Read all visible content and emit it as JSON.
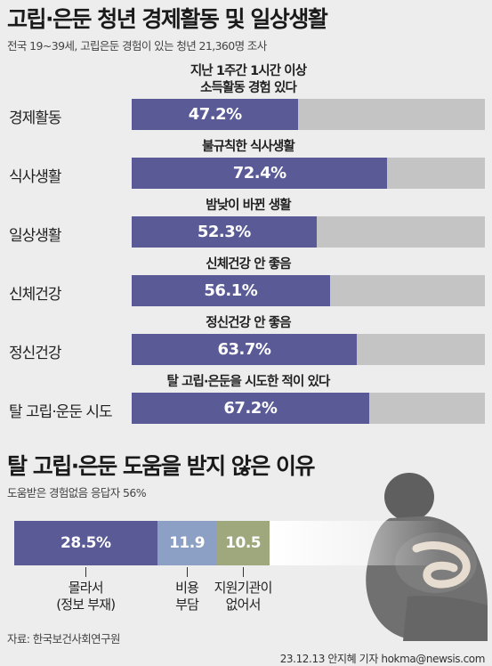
{
  "chart_data": [
    {
      "type": "bar",
      "orientation": "horizontal",
      "title": "고립·은둔 청년 경제활동 및 일상생활",
      "subtitle": "전국 19~39세, 고립은둔 경험이 있는 청년 21,360명 조사",
      "xlim": [
        0,
        100
      ],
      "rows": [
        {
          "label": "경제활동",
          "caption": "지난 1주간 1시간 이상\n소득활동 경험 있다",
          "value": 47.2,
          "value_label": "47.2%"
        },
        {
          "label": "식사생활",
          "caption": "불규칙한 식사생활",
          "value": 72.4,
          "value_label": "72.4%"
        },
        {
          "label": "일상생활",
          "caption": "밤낮이 바뀐 생활",
          "value": 52.3,
          "value_label": "52.3%"
        },
        {
          "label": "신체건강",
          "caption": "신체건강 안 좋음",
          "value": 56.1,
          "value_label": "56.1%"
        },
        {
          "label": "정신건강",
          "caption": "정신건강 안 좋음",
          "value": 63.7,
          "value_label": "63.7%"
        },
        {
          "label": "탈 고립·운둔 시도",
          "caption": "탈 고립·은둔을 시도한 적이 있다",
          "value": 67.2,
          "value_label": "67.2%"
        }
      ],
      "colors": {
        "fill": "#595a96",
        "track": "#c4c4c4"
      }
    },
    {
      "type": "bar",
      "orientation": "stacked-horizontal",
      "title": "탈 고립·은둔 도움을 받지 않은 이유",
      "subtitle": "도움받은 경험없음 응답자 56%",
      "xlim": [
        0,
        100
      ],
      "segments": [
        {
          "label": "몰라서\n(정보 부재)",
          "value": 28.5,
          "value_label": "28.5%",
          "color": "#595a96"
        },
        {
          "label": "비용\n부담",
          "value": 11.9,
          "value_label": "11.9",
          "color": "#8ba0c4"
        },
        {
          "label": "지원기관이\n없어서",
          "value": 10.5,
          "value_label": "10.5",
          "color": "#9fa77c"
        }
      ],
      "remainder_color": "#ffffff"
    }
  ],
  "footer": {
    "source": "자료: 한국보건사회연구원",
    "credit": "23.12.13 안지혜 기자 hokma@newsis.com"
  },
  "illustration": {
    "icon": "sitting-person-icon",
    "color": "#6e6e6e"
  }
}
